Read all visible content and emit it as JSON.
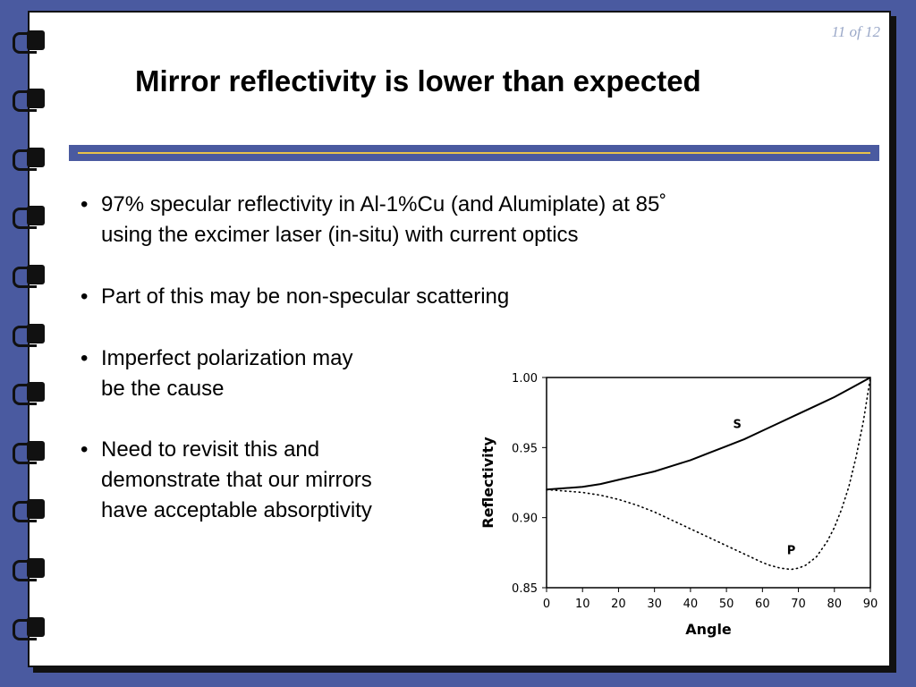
{
  "slide": {
    "page_number": "11 of 12",
    "title": "Mirror reflectivity is lower than expected",
    "accent_color": "#4a5aa0",
    "rule_color": "#e8c24a"
  },
  "bullets": [
    {
      "lines": [
        "97% specular reflectivity in Al-1%Cu (and Alumiplate) at 85˚",
        "using the excimer laser (in-situ) with current optics"
      ]
    },
    {
      "lines": [
        "Part of this may be non-specular scattering"
      ]
    },
    {
      "lines": [
        "Imperfect polarization may",
        "be the cause"
      ]
    },
    {
      "lines": [
        "Need to revisit this and",
        "demonstrate that our mirrors",
        "have acceptable absorptivity"
      ]
    }
  ],
  "chart_data": {
    "type": "line",
    "xlabel": "Angle",
    "ylabel": "Reflectivity",
    "xlim": [
      0,
      90
    ],
    "ylim": [
      0.85,
      1.0
    ],
    "xticks": [
      "0",
      "10",
      "20",
      "30",
      "40",
      "50",
      "60",
      "70",
      "80",
      "90"
    ],
    "yticks": [
      "0.85",
      "0.90",
      "0.95",
      "1.00"
    ],
    "grid": false,
    "series": [
      {
        "name": "S",
        "style": "solid",
        "x": [
          0,
          5,
          10,
          15,
          20,
          25,
          30,
          35,
          40,
          45,
          50,
          55,
          60,
          65,
          70,
          75,
          80,
          85,
          90
        ],
        "y": [
          0.92,
          0.921,
          0.922,
          0.924,
          0.927,
          0.93,
          0.933,
          0.937,
          0.941,
          0.946,
          0.951,
          0.956,
          0.962,
          0.968,
          0.974,
          0.98,
          0.986,
          0.993,
          1.0
        ]
      },
      {
        "name": "P",
        "style": "dotted",
        "x": [
          0,
          5,
          10,
          15,
          20,
          25,
          30,
          35,
          40,
          45,
          50,
          55,
          60,
          62,
          65,
          68,
          70,
          72,
          75,
          78,
          80,
          82,
          84,
          86,
          88,
          90
        ],
        "y": [
          0.92,
          0.919,
          0.918,
          0.916,
          0.913,
          0.909,
          0.904,
          0.898,
          0.892,
          0.886,
          0.88,
          0.874,
          0.868,
          0.866,
          0.864,
          0.863,
          0.864,
          0.866,
          0.872,
          0.883,
          0.893,
          0.906,
          0.922,
          0.943,
          0.968,
          1.0
        ]
      }
    ]
  }
}
